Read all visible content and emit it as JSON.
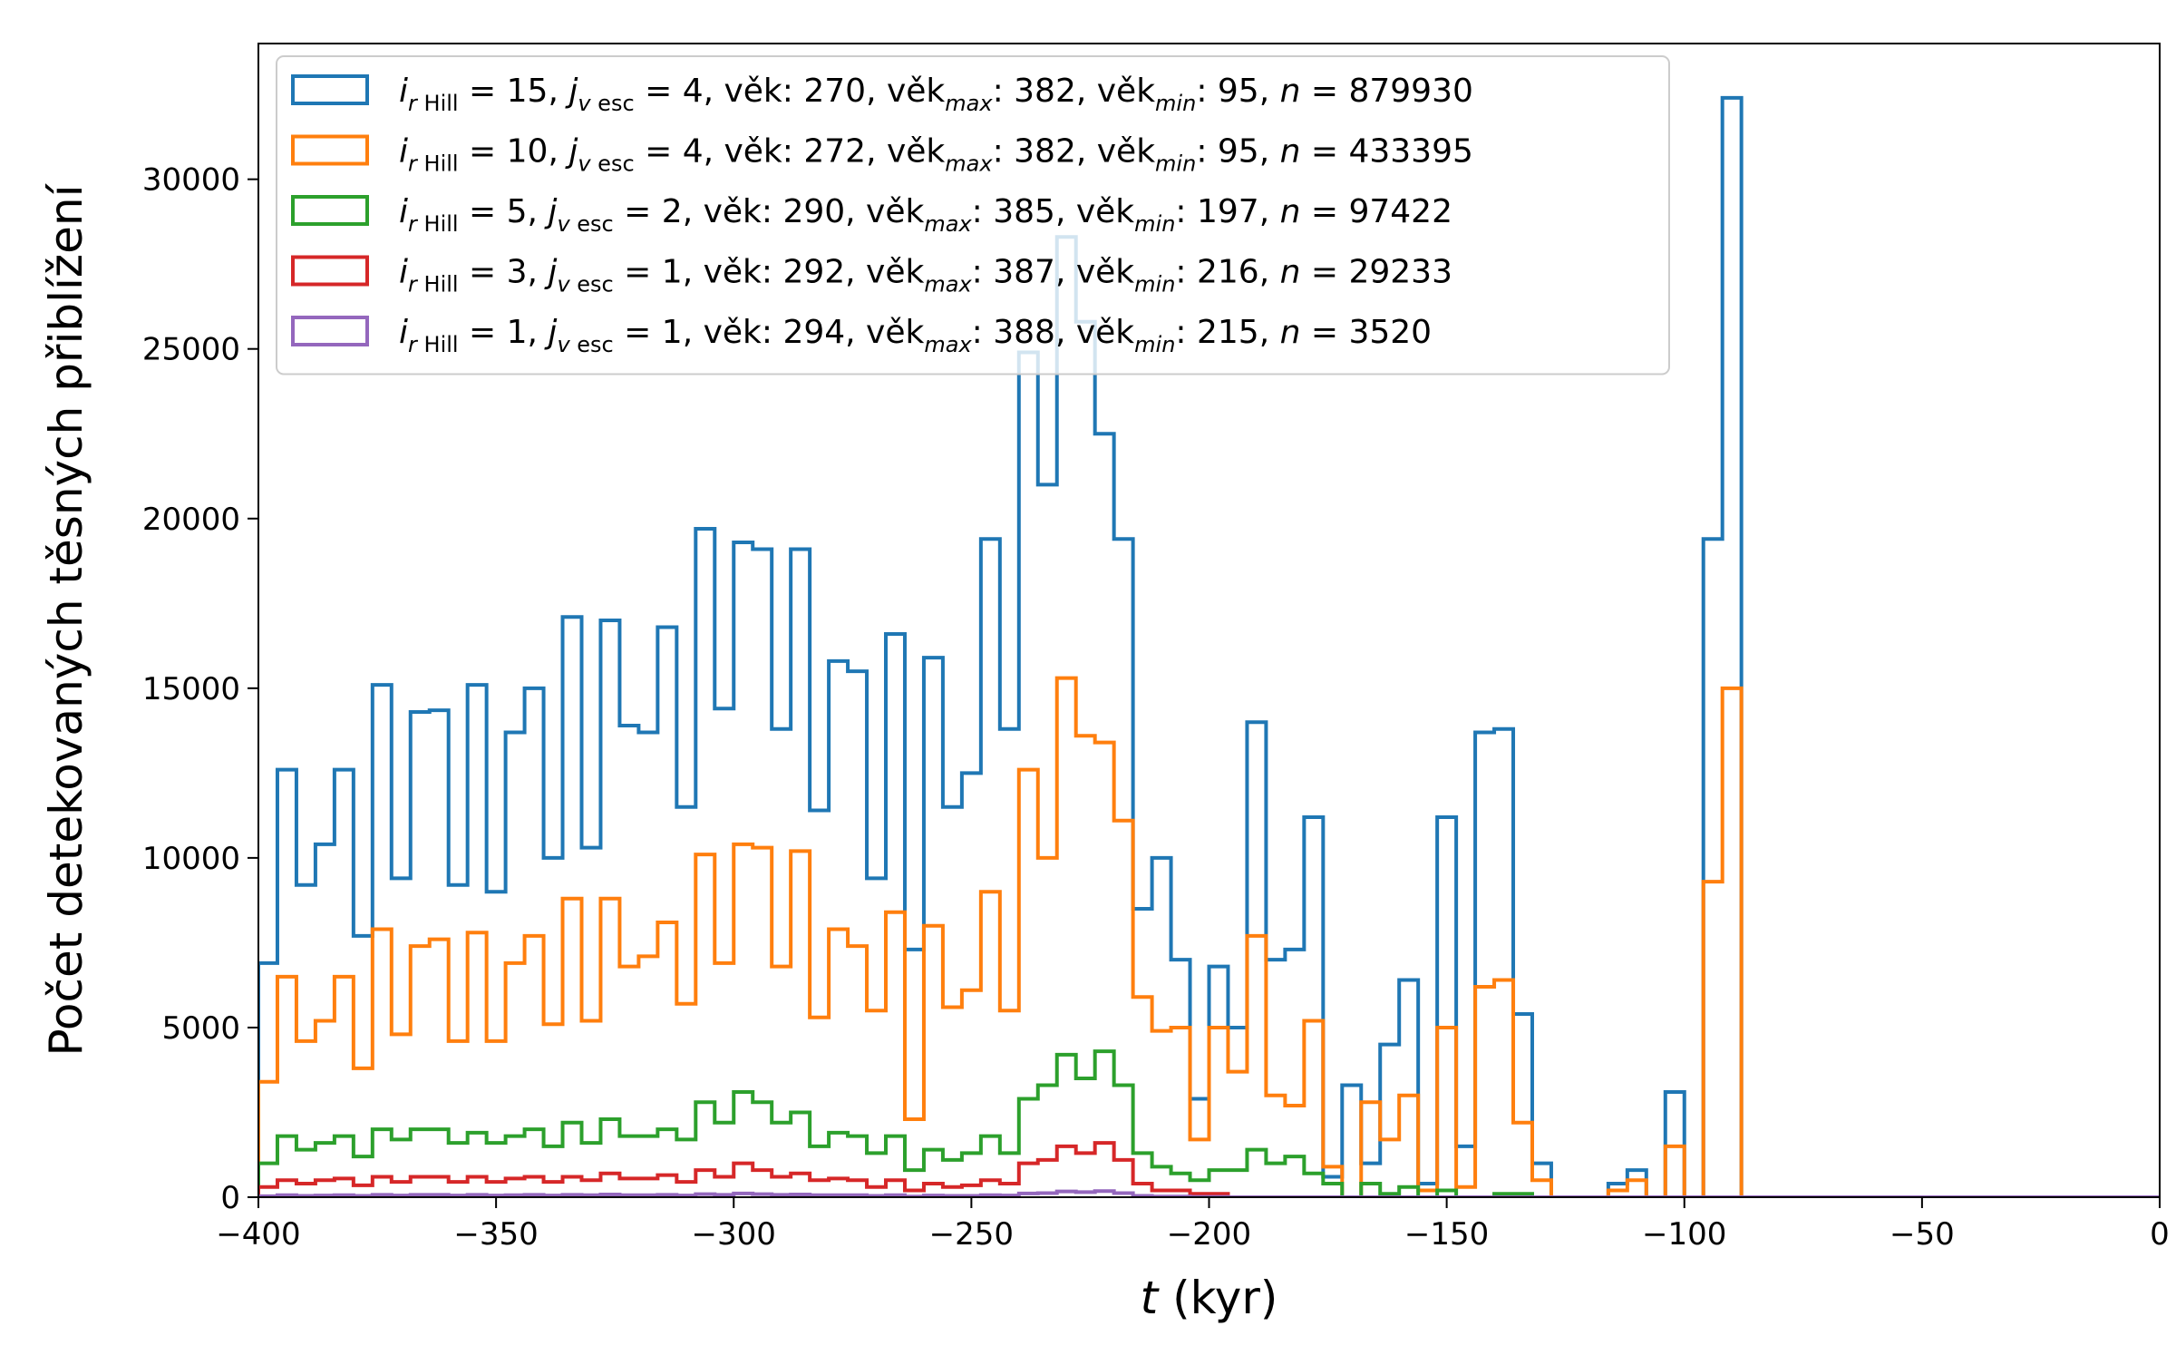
{
  "chart_data": {
    "type": "histogram-step",
    "title": "",
    "xlabel": "t (kyr)",
    "ylabel": "Počet detekovaných těsných přiblížení",
    "xlim": [
      -400,
      0
    ],
    "ylim": [
      0,
      34000
    ],
    "bin_width": 4,
    "x_ticks": [
      -400,
      -350,
      -300,
      -250,
      -200,
      -150,
      -100,
      -50,
      0
    ],
    "y_ticks": [
      0,
      5000,
      10000,
      15000,
      20000,
      25000,
      30000
    ],
    "x_tick_labels": [
      "−400",
      "−350",
      "−300",
      "−250",
      "−200",
      "−150",
      "−100",
      "−50",
      "0"
    ],
    "y_tick_labels": [
      "0",
      "5000",
      "10000",
      "15000",
      "20000",
      "25000",
      "30000"
    ],
    "legend_position": "upper-left",
    "bin_edges_start": -400,
    "series": [
      {
        "color": "#1f77b4",
        "label": {
          "i": "15",
          "j": "4",
          "vek": "270",
          "vek_max": "382",
          "vek_min": "95",
          "n": "879930"
        },
        "values": [
          6900,
          12600,
          9200,
          10400,
          12600,
          7700,
          15100,
          9400,
          14300,
          14350,
          9200,
          15100,
          9000,
          13700,
          15000,
          10000,
          17100,
          10300,
          17000,
          13900,
          13700,
          16800,
          11500,
          19700,
          14400,
          19300,
          19100,
          13800,
          19100,
          11400,
          15800,
          15500,
          9400,
          16600,
          7300,
          15900,
          11500,
          12500,
          19400,
          13800,
          24900,
          21000,
          28300,
          25800,
          22500,
          19400,
          8500,
          10000,
          7000,
          2900,
          6800,
          5000,
          14000,
          7000,
          7300,
          11200,
          600,
          3300,
          1000,
          4500,
          6400,
          400,
          11200,
          1500,
          13700,
          13800,
          5400,
          1000,
          0,
          0,
          0,
          400,
          800,
          0,
          3100,
          0,
          19400,
          32400,
          0,
          0,
          0,
          0,
          0,
          0,
          0,
          0,
          0,
          0,
          0,
          0,
          0,
          0,
          0,
          0,
          0,
          0,
          0,
          0,
          0,
          0
        ]
      },
      {
        "color": "#ff7f0e",
        "label": {
          "i": "10",
          "j": "4",
          "vek": "272",
          "vek_max": "382",
          "vek_min": "95",
          "n": "433395"
        },
        "values": [
          3400,
          6500,
          4600,
          5200,
          6500,
          3800,
          7900,
          4800,
          7400,
          7600,
          4600,
          7800,
          4600,
          6900,
          7700,
          5100,
          8800,
          5200,
          8800,
          6800,
          7100,
          8100,
          5700,
          10100,
          6900,
          10400,
          10300,
          6800,
          10200,
          5300,
          7900,
          7400,
          5500,
          8400,
          2300,
          8000,
          5600,
          6100,
          9000,
          5500,
          12600,
          10000,
          15300,
          13600,
          13400,
          11100,
          5900,
          4900,
          5000,
          1700,
          5000,
          3700,
          7700,
          3000,
          2700,
          5200,
          900,
          0,
          2800,
          1700,
          3000,
          200,
          5000,
          300,
          6200,
          6400,
          2200,
          500,
          0,
          0,
          0,
          200,
          500,
          0,
          1500,
          0,
          9300,
          15000,
          0,
          0,
          0,
          0,
          0,
          0,
          0,
          0,
          0,
          0,
          0,
          0,
          0,
          0,
          0,
          0,
          0,
          0,
          0,
          0,
          0,
          0
        ]
      },
      {
        "color": "#2ca02c",
        "label": {
          "i": " 5",
          "j": "2",
          "vek": "290",
          "vek_max": "385",
          "vek_min": "197",
          "n": "97422"
        },
        "values": [
          1000,
          1800,
          1400,
          1600,
          1800,
          1200,
          2000,
          1700,
          2000,
          2000,
          1600,
          1900,
          1600,
          1800,
          2000,
          1500,
          2200,
          1600,
          2300,
          1800,
          1800,
          2000,
          1700,
          2800,
          2200,
          3100,
          2800,
          2200,
          2500,
          1500,
          1900,
          1800,
          1300,
          1800,
          800,
          1400,
          1100,
          1300,
          1800,
          1300,
          2900,
          3300,
          4200,
          3500,
          4300,
          3300,
          1300,
          900,
          700,
          500,
          800,
          800,
          1400,
          1000,
          1200,
          700,
          400,
          0,
          400,
          100,
          300,
          0,
          200,
          0,
          0,
          100,
          100,
          0,
          0,
          0,
          0,
          0,
          0,
          0,
          0,
          0,
          0,
          0,
          0,
          0,
          0,
          0,
          0,
          0,
          0,
          0,
          0,
          0,
          0,
          0,
          0,
          0,
          0,
          0,
          0,
          0,
          0,
          0,
          0,
          0
        ]
      },
      {
        "color": "#d62728",
        "label": {
          "i": " 3",
          "j": "1",
          "vek": "292",
          "vek_max": "387",
          "vek_min": "216",
          "n": "29233"
        },
        "values": [
          300,
          500,
          400,
          500,
          550,
          350,
          600,
          450,
          600,
          600,
          450,
          600,
          450,
          550,
          600,
          450,
          600,
          500,
          700,
          550,
          550,
          650,
          450,
          800,
          600,
          1000,
          800,
          600,
          700,
          500,
          550,
          500,
          300,
          500,
          200,
          400,
          300,
          350,
          500,
          400,
          1000,
          1100,
          1500,
          1300,
          1600,
          1100,
          400,
          200,
          200,
          100,
          100,
          0,
          0,
          0,
          0,
          0,
          0,
          0,
          0,
          0,
          0,
          0,
          0,
          0,
          0,
          0,
          0,
          0,
          0,
          0,
          0,
          0,
          0,
          0,
          0,
          0,
          0,
          0,
          0,
          0,
          0,
          0,
          0,
          0,
          0,
          0,
          0,
          0,
          0,
          0,
          0,
          0,
          0,
          0,
          0,
          0,
          0,
          0,
          0,
          0
        ]
      },
      {
        "color": "#9467bd",
        "label": {
          "i": " 1",
          "j": "1",
          "vek": "294",
          "vek_max": "388",
          "vek_min": "215",
          "n": "3520"
        },
        "values": [
          30,
          60,
          40,
          50,
          60,
          40,
          70,
          50,
          70,
          70,
          50,
          70,
          50,
          60,
          70,
          50,
          70,
          60,
          80,
          60,
          60,
          70,
          50,
          90,
          70,
          110,
          90,
          70,
          80,
          60,
          60,
          60,
          40,
          60,
          20,
          50,
          40,
          40,
          60,
          50,
          110,
          120,
          170,
          150,
          180,
          120,
          40,
          20,
          20,
          10,
          10,
          0,
          0,
          0,
          0,
          0,
          0,
          0,
          0,
          0,
          0,
          0,
          0,
          0,
          0,
          0,
          0,
          0,
          0,
          0,
          0,
          0,
          0,
          0,
          0,
          0,
          0,
          0,
          0,
          0,
          0,
          0,
          0,
          0,
          0,
          0,
          0,
          0,
          0,
          0,
          0,
          0,
          0,
          0,
          0,
          0,
          0,
          0,
          0,
          0
        ]
      }
    ]
  }
}
